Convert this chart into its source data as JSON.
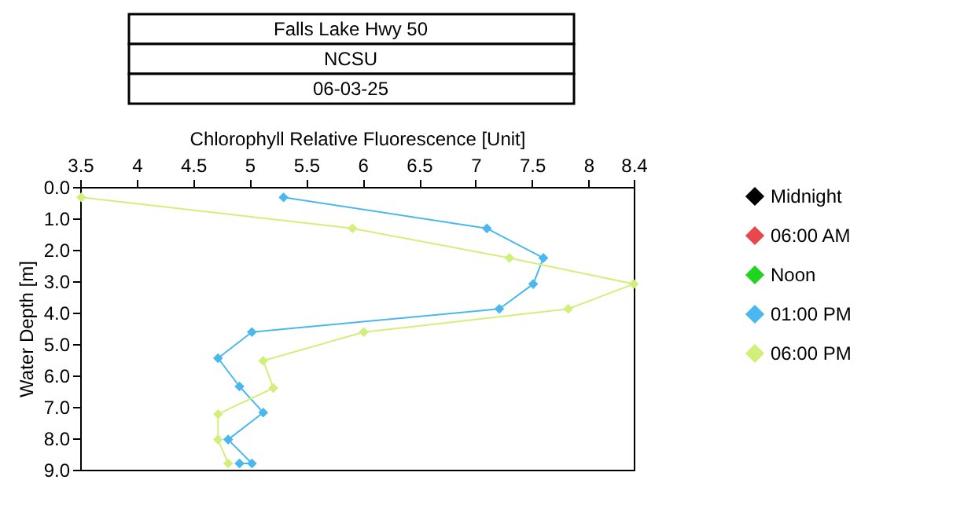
{
  "chart_data": {
    "type": "line",
    "title": "Falls Lake Hwy 50",
    "subtitle": "NCSU",
    "annotations": [
      "06-03-25"
    ],
    "xlabel": "Chlorophyll Relative Fluorescence [Unit]",
    "ylabel": "Water Depth [m]",
    "xlim": [
      3.5,
      8.4
    ],
    "xticks": [
      3.5,
      4,
      4.5,
      5,
      5.5,
      6,
      6.5,
      7,
      7.5,
      8,
      8.4
    ],
    "ylim": [
      9,
      0
    ],
    "yticks": [
      {
        "value": 0,
        "label": "0.0"
      },
      {
        "value": 1,
        "label": "1.0"
      },
      {
        "value": 2,
        "label": "2.0"
      },
      {
        "value": 3,
        "label": "3.0"
      },
      {
        "value": 4,
        "label": "4.0"
      },
      {
        "value": 5,
        "label": "5.0"
      },
      {
        "value": 6,
        "label": "6.0"
      },
      {
        "value": 7,
        "label": "7.0"
      },
      {
        "value": 8,
        "label": "8.0"
      },
      {
        "value": 9,
        "label": "9.0"
      }
    ],
    "marker": "diamond",
    "line_style": "solid",
    "grid": false,
    "legend": "top right",
    "series": [
      {
        "name": "Midnight",
        "color": "#000000"
      },
      {
        "name": "06:00 AM",
        "color": "#e8474c"
      },
      {
        "name": "Noon",
        "color": "#22d422"
      },
      {
        "name": "01:00 PM",
        "color": "#4ab8ee",
        "x": [
          5.3,
          7.1,
          7.6,
          7.51,
          7.21,
          5.02,
          4.72,
          4.91,
          5.12,
          4.81,
          5.02,
          4.91
        ],
        "values": [
          0.33,
          1.32,
          2.26,
          3.09,
          3.88,
          4.62,
          5.45,
          6.35,
          7.18,
          8.04,
          8.8,
          8.8
        ]
      },
      {
        "name": "06:00 PM",
        "color": "#d2ef7c",
        "x": [
          3.51,
          5.91,
          7.3,
          8.4,
          7.82,
          6.01,
          5.12,
          5.21,
          4.72,
          4.72,
          4.81
        ],
        "values": [
          0.33,
          1.32,
          2.26,
          3.09,
          3.88,
          4.62,
          5.53,
          6.4,
          7.23,
          8.04,
          8.8
        ]
      }
    ]
  }
}
